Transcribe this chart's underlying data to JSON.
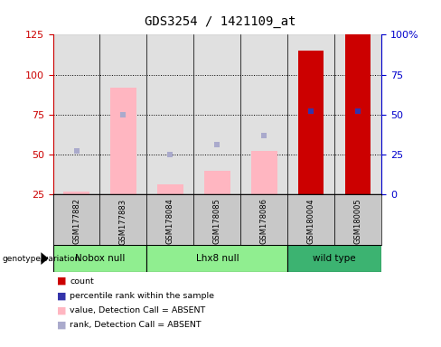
{
  "title": "GDS3254 / 1421109_at",
  "samples": [
    "GSM177882",
    "GSM177883",
    "GSM178084",
    "GSM178085",
    "GSM178086",
    "GSM180004",
    "GSM180005"
  ],
  "count_values": [
    null,
    null,
    null,
    null,
    null,
    115,
    125
  ],
  "pink_bar_values": [
    27,
    92,
    31,
    40,
    52,
    null,
    null
  ],
  "light_blue_vals": [
    52,
    75,
    50,
    56,
    62,
    null,
    null
  ],
  "blue_square_values": [
    null,
    null,
    null,
    null,
    null,
    77,
    77
  ],
  "left_ylim": [
    25,
    125
  ],
  "left_yticks": [
    25,
    50,
    75,
    100,
    125
  ],
  "right_ylim": [
    0,
    100
  ],
  "right_yticks": [
    0,
    25,
    50,
    75,
    100
  ],
  "right_yticklabels": [
    "0",
    "25",
    "50",
    "75",
    "100%"
  ],
  "bar_width": 0.55,
  "count_color": "#CC0000",
  "pink_bar_color": "#FFB6C1",
  "blue_square_color": "#3333AA",
  "light_blue_square_color": "#AAAACC",
  "axis_color_left": "#CC0000",
  "axis_color_right": "#0000CC",
  "col_bg_even": "#C8C8C8",
  "col_bg_odd": "#D8D8D8",
  "group_defs": [
    {
      "label": "Nobox null",
      "start": 0,
      "end": 1,
      "color": "#90EE90"
    },
    {
      "label": "Lhx8 null",
      "start": 2,
      "end": 4,
      "color": "#90EE90"
    },
    {
      "label": "wild type",
      "start": 5,
      "end": 6,
      "color": "#3CB371"
    }
  ],
  "genotype_label": "genotype/variation",
  "legend_items": [
    {
      "color": "#CC0000",
      "label": "count"
    },
    {
      "color": "#3333AA",
      "label": "percentile rank within the sample"
    },
    {
      "color": "#FFB6C1",
      "label": "value, Detection Call = ABSENT"
    },
    {
      "color": "#AAAACC",
      "label": "rank, Detection Call = ABSENT"
    }
  ]
}
